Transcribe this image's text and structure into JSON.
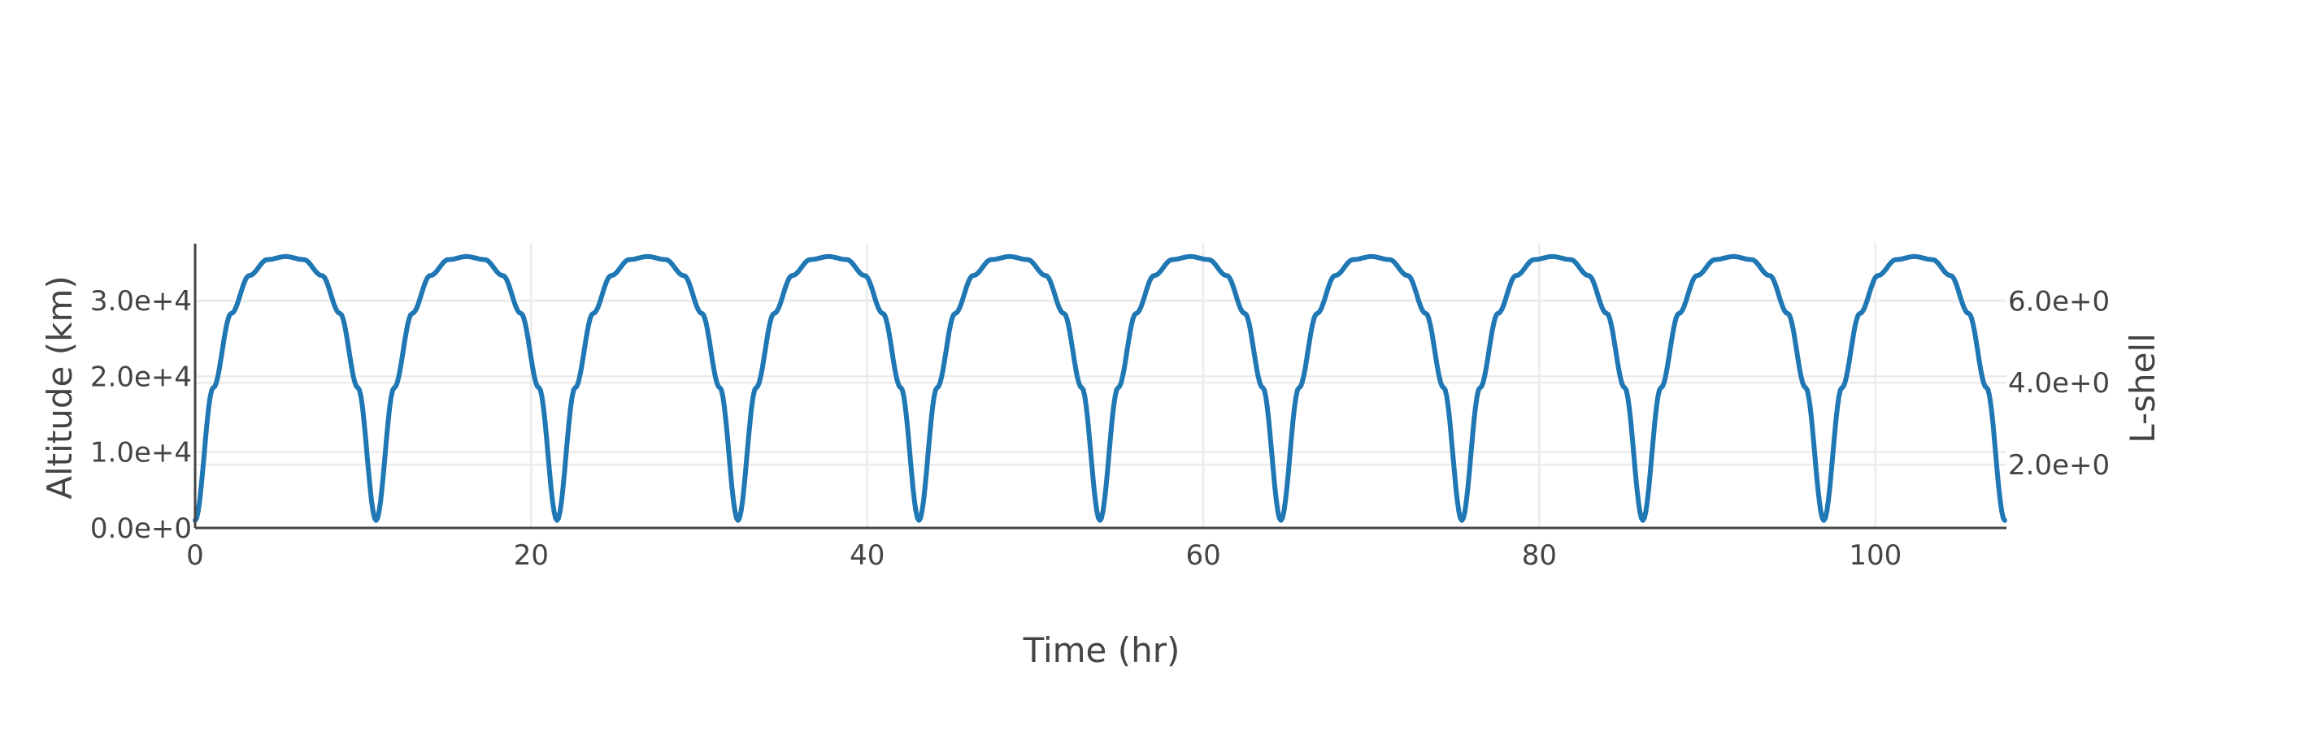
{
  "chart_data": {
    "type": "line",
    "title": "",
    "xlabel": "Time (hr)",
    "ylabel": "Altitude (km)",
    "y2label": "L-shell",
    "xlim": [
      0,
      107.8
    ],
    "ylim": [
      0,
      37500
    ],
    "y2lim": [
      0.45,
      7.4
    ],
    "x_ticks": [
      0,
      20,
      40,
      60,
      80,
      100
    ],
    "x_tick_labels": [
      "0",
      "20",
      "40",
      "60",
      "80",
      "100"
    ],
    "y_ticks": [
      0,
      10000,
      20000,
      30000
    ],
    "y_tick_labels": [
      "0.0e+0",
      "1.0e+4",
      "2.0e+4",
      "3.0e+4"
    ],
    "y2_ticks": [
      2,
      4,
      6
    ],
    "y2_tick_labels": [
      "2.0e+0",
      "4.0e+0",
      "6.0e+0"
    ],
    "grid": true,
    "series": [
      {
        "color": "#1f77b4",
        "description": "Periodic orbit altitude; period ~10.77 hr, apogee ~35800 km, perigee ~1000 km",
        "x": [
          0.0,
          1.08,
          2.15,
          3.23,
          4.31,
          5.39,
          6.46,
          7.54,
          8.62,
          9.69,
          10.77,
          11.85,
          12.92,
          14.0,
          15.08,
          16.16,
          17.23,
          18.31,
          19.39,
          20.46,
          21.54,
          22.62,
          23.69,
          24.77,
          25.85,
          26.93,
          28.0,
          29.08,
          30.16,
          31.23,
          32.31,
          33.39,
          34.46,
          35.54,
          36.62,
          37.7,
          38.77,
          39.85,
          40.93,
          42.0,
          43.08,
          44.16,
          45.23,
          46.31,
          47.39,
          48.47,
          49.54,
          50.62,
          51.7,
          52.77,
          53.85,
          54.93,
          56.0,
          57.08,
          58.16,
          59.24,
          60.31,
          61.39,
          62.47,
          63.54,
          64.62,
          65.7,
          66.77,
          67.85,
          68.93,
          70.01,
          71.08,
          72.16,
          73.24,
          74.31,
          75.39,
          76.47,
          77.54,
          78.62,
          79.7,
          80.78,
          81.85,
          82.93,
          84.01,
          85.08,
          86.16,
          87.24,
          88.31,
          89.39,
          90.47,
          91.55,
          92.62,
          93.7,
          94.78,
          95.85,
          96.93,
          98.01,
          99.08,
          100.16,
          101.24,
          102.32,
          103.39,
          104.47,
          105.55,
          106.62,
          107.7
        ],
        "y": [
          1000,
          18500,
          28300,
          33300,
          35400,
          35800,
          35400,
          33300,
          28300,
          18500,
          1000,
          18500,
          28300,
          33300,
          35400,
          35800,
          35400,
          33300,
          28300,
          18500,
          1000,
          18500,
          28300,
          33300,
          35400,
          35800,
          35400,
          33300,
          28300,
          18500,
          1000,
          18500,
          28300,
          33300,
          35400,
          35800,
          35400,
          33300,
          28300,
          18500,
          1000,
          18500,
          28300,
          33300,
          35400,
          35800,
          35400,
          33300,
          28300,
          18500,
          1000,
          18500,
          28300,
          33300,
          35400,
          35800,
          35400,
          33300,
          28300,
          18500,
          1000,
          18500,
          28300,
          33300,
          35400,
          35800,
          35400,
          33300,
          28300,
          18500,
          1000,
          18500,
          28300,
          33300,
          35400,
          35800,
          35400,
          33300,
          28300,
          18500,
          1000,
          18500,
          28300,
          33300,
          35400,
          35800,
          35400,
          33300,
          28300,
          18500,
          1000,
          18500,
          28300,
          33300,
          35400,
          35800,
          35400,
          33300,
          28300,
          18500,
          1000
        ]
      }
    ]
  }
}
